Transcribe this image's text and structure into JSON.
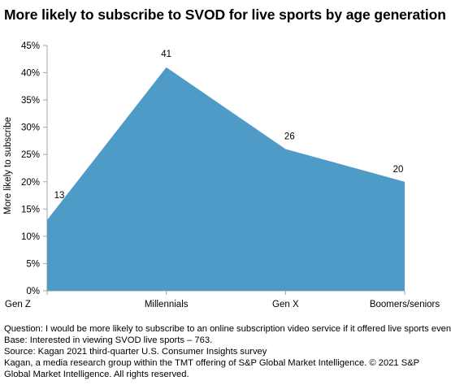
{
  "chart_data": {
    "type": "area",
    "title": "More likely to subscribe to SVOD for live sports by age generation",
    "ylabel": "More likely to subscribe",
    "xlabel": "",
    "categories": [
      "Gen Z",
      "Millennials",
      "Gen X",
      "Boomers/seniors"
    ],
    "values": [
      13,
      41,
      26,
      20
    ],
    "data_labels": [
      "13",
      "41",
      "26",
      "20"
    ],
    "y_ticks": [
      "0%",
      "5%",
      "10%",
      "15%",
      "20%",
      "25%",
      "30%",
      "35%",
      "40%",
      "45%"
    ],
    "ylim": [
      0,
      45
    ],
    "grid": false,
    "legend": "none",
    "fill_color": "#4f9bc7"
  },
  "notes": [
    "Question: I would be more likely to subscribe to an online subscription video service if it offered live sports events.",
    "Base: Interested in viewing SVOD live sports – 763.",
    "Source: Kagan 2021 third-quarter U.S. Consumer Insights survey",
    "Kagan, a media research group within the TMT offering of S&P Global Market Intelligence.  © 2021 S&P",
    "Global Market Intelligence.  All rights reserved."
  ]
}
